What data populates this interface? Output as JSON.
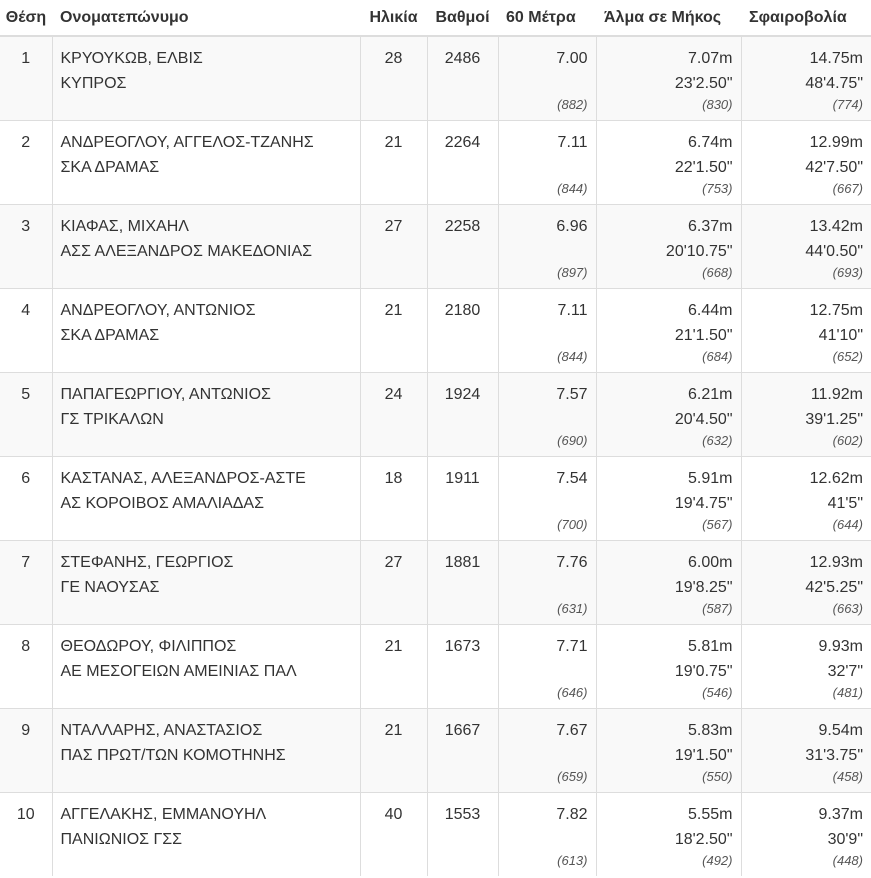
{
  "headers": {
    "pos": "Θέση",
    "name": "Ονοματεπώνυμο",
    "age": "Ηλικία",
    "points": "Βαθμοί",
    "m60": "60 Μέτρα",
    "long_jump": "Άλμα σε Μήκος",
    "shot_put": "Σφαιροβολία"
  },
  "rows": [
    {
      "pos": "1",
      "name": "ΚΡΥΟΥΚΩΒ, ΕΛΒΙΣ",
      "club": "ΚΥΠΡΟΣ",
      "age": "28",
      "points": "2486",
      "m60": "7.00",
      "m60_pts": "(882)",
      "lj_m": "7.07m",
      "lj_ft": "23'2.50\"",
      "lj_pts": "(830)",
      "sp_m": "14.75m",
      "sp_ft": "48'4.75\"",
      "sp_pts": "(774)"
    },
    {
      "pos": "2",
      "name": "ΑΝΔΡΕΟΓΛΟΥ, ΑΓΓΕΛΟΣ-ΤΖΑΝΗΣ",
      "club": "ΣΚΑ ΔΡΑΜΑΣ",
      "age": "21",
      "points": "2264",
      "m60": "7.11",
      "m60_pts": "(844)",
      "lj_m": "6.74m",
      "lj_ft": "22'1.50\"",
      "lj_pts": "(753)",
      "sp_m": "12.99m",
      "sp_ft": "42'7.50\"",
      "sp_pts": "(667)"
    },
    {
      "pos": "3",
      "name": "ΚΙΑΦΑΣ, ΜΙΧΑΗΛ",
      "club": "ΑΣΣ ΑΛΕΞΑΝΔΡΟΣ ΜΑΚΕΔΟΝΙΑΣ",
      "age": "27",
      "points": "2258",
      "m60": "6.96",
      "m60_pts": "(897)",
      "lj_m": "6.37m",
      "lj_ft": "20'10.75\"",
      "lj_pts": "(668)",
      "sp_m": "13.42m",
      "sp_ft": "44'0.50\"",
      "sp_pts": "(693)"
    },
    {
      "pos": "4",
      "name": "ΑΝΔΡΕΟΓΛΟΥ, ΑΝΤΩΝΙΟΣ",
      "club": "ΣΚΑ ΔΡΑΜΑΣ",
      "age": "21",
      "points": "2180",
      "m60": "7.11",
      "m60_pts": "(844)",
      "lj_m": "6.44m",
      "lj_ft": "21'1.50\"",
      "lj_pts": "(684)",
      "sp_m": "12.75m",
      "sp_ft": "41'10\"",
      "sp_pts": "(652)"
    },
    {
      "pos": "5",
      "name": "ΠΑΠΑΓΕΩΡΓΙΟΥ, ΑΝΤΩΝΙΟΣ",
      "club": "ΓΣ ΤΡΙΚΑΛΩΝ",
      "age": "24",
      "points": "1924",
      "m60": "7.57",
      "m60_pts": "(690)",
      "lj_m": "6.21m",
      "lj_ft": "20'4.50\"",
      "lj_pts": "(632)",
      "sp_m": "11.92m",
      "sp_ft": "39'1.25\"",
      "sp_pts": "(602)"
    },
    {
      "pos": "6",
      "name": "ΚΑΣΤΑΝΑΣ, ΑΛΕΞΑΝΔΡΟΣ-ΑΣΤΕ",
      "club": "ΑΣ ΚΟΡΟΙΒΟΣ ΑΜΑΛΙΑΔΑΣ",
      "age": "18",
      "points": "1911",
      "m60": "7.54",
      "m60_pts": "(700)",
      "lj_m": "5.91m",
      "lj_ft": "19'4.75\"",
      "lj_pts": "(567)",
      "sp_m": "12.62m",
      "sp_ft": "41'5\"",
      "sp_pts": "(644)"
    },
    {
      "pos": "7",
      "name": "ΣΤΕΦΑΝΗΣ, ΓΕΩΡΓΙΟΣ",
      "club": "ΓΕ ΝΑΟΥΣΑΣ",
      "age": "27",
      "points": "1881",
      "m60": "7.76",
      "m60_pts": "(631)",
      "lj_m": "6.00m",
      "lj_ft": "19'8.25\"",
      "lj_pts": "(587)",
      "sp_m": "12.93m",
      "sp_ft": "42'5.25\"",
      "sp_pts": "(663)"
    },
    {
      "pos": "8",
      "name": "ΘΕΟΔΩΡΟΥ, ΦΙΛΙΠΠΟΣ",
      "club": "ΑΕ ΜΕΣΟΓΕΙΩΝ ΑΜΕΙΝΙΑΣ ΠΑΛ",
      "age": "21",
      "points": "1673",
      "m60": "7.71",
      "m60_pts": "(646)",
      "lj_m": "5.81m",
      "lj_ft": "19'0.75\"",
      "lj_pts": "(546)",
      "sp_m": "9.93m",
      "sp_ft": "32'7\"",
      "sp_pts": "(481)"
    },
    {
      "pos": "9",
      "name": "ΝΤΑΛΛΑΡΗΣ, ΑΝΑΣΤΑΣΙΟΣ",
      "club": "ΠΑΣ ΠΡΩΤ/ΤΩΝ ΚΟΜΟΤΗΝΗΣ",
      "age": "21",
      "points": "1667",
      "m60": "7.67",
      "m60_pts": "(659)",
      "lj_m": "5.83m",
      "lj_ft": "19'1.50\"",
      "lj_pts": "(550)",
      "sp_m": "9.54m",
      "sp_ft": "31'3.75\"",
      "sp_pts": "(458)"
    },
    {
      "pos": "10",
      "name": "ΑΓΓΕΛΑΚΗΣ, ΕΜΜΑΝΟΥΗΛ",
      "club": "ΠΑΝΙΩΝΙΟΣ ΓΣΣ",
      "age": "40",
      "points": "1553",
      "m60": "7.82",
      "m60_pts": "(613)",
      "lj_m": "5.55m",
      "lj_ft": "18'2.50\"",
      "lj_pts": "(492)",
      "sp_m": "9.37m",
      "sp_ft": "30'9\"",
      "sp_pts": "(448)"
    }
  ]
}
